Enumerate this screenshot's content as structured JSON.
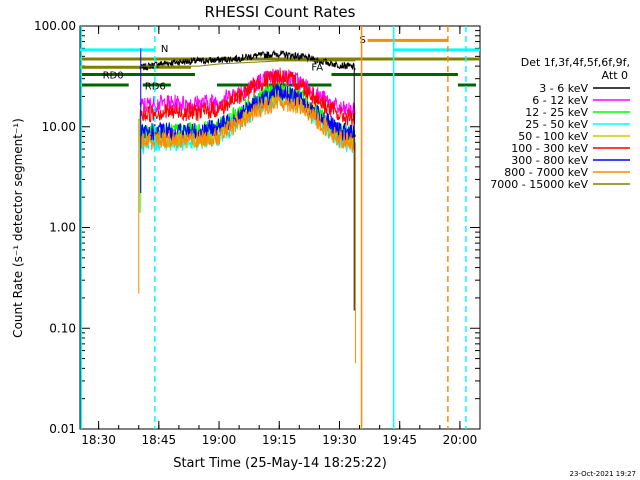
{
  "chart_data": {
    "type": "line",
    "title": "RHESSI Count Rates",
    "xlabel": "Start Time (25-May-14 18:25:22)",
    "ylabel": "Count Rate (s⁻¹ detector segment⁻¹)",
    "yscale": "log",
    "ylim": [
      0.01,
      100
    ],
    "xlim": [
      "18:25:22",
      "20:05:00"
    ],
    "x_ticks": [
      "18:30",
      "18:45",
      "19:00",
      "19:15",
      "19:30",
      "19:45",
      "20:00"
    ],
    "y_ticks": [
      "0.01",
      "0.10",
      "1.00",
      "10.00",
      "100.00"
    ],
    "grid": false,
    "legend_placement": "right",
    "legend_header": [
      "Det 1f,3f,4f,5f,6f,9f,",
      "Att 0"
    ],
    "footer_date": "23-Oct-2021 19:27",
    "series": [
      {
        "name": "3 - 6 keV",
        "color": "#000000",
        "x": [
          "18:40",
          "18:45",
          "18:50",
          "18:55",
          "19:00",
          "19:05",
          "19:10",
          "19:15",
          "19:20",
          "19:25",
          "19:30",
          "19:34"
        ],
        "values": [
          38,
          42,
          44,
          45,
          46,
          48,
          51,
          53,
          50,
          45,
          41,
          39
        ]
      },
      {
        "name": "6 - 12 keV",
        "color": "#ff00ff",
        "x": [
          "18:40",
          "18:45",
          "18:50",
          "18:55",
          "19:00",
          "19:05",
          "19:10",
          "19:15",
          "19:20",
          "19:25",
          "19:30",
          "19:34"
        ],
        "values": [
          16,
          17,
          17,
          17,
          18,
          22,
          28,
          33,
          28,
          20,
          15,
          14
        ]
      },
      {
        "name": "12 - 25 keV",
        "color": "#00ff00",
        "x": [
          "18:40",
          "18:45",
          "18:50",
          "18:55",
          "19:00",
          "19:05",
          "19:10",
          "19:15",
          "19:20",
          "19:25",
          "19:30",
          "19:34"
        ],
        "values": [
          8.5,
          9,
          9,
          9,
          10,
          14,
          20,
          24,
          20,
          13,
          9,
          8
        ]
      },
      {
        "name": "25 - 50 keV",
        "color": "#00ffff",
        "x": [
          "18:40",
          "18:45",
          "18:50",
          "18:55",
          "19:00",
          "19:05",
          "19:10",
          "19:15",
          "19:20",
          "19:25",
          "19:30",
          "19:34"
        ],
        "values": [
          6.5,
          7,
          7,
          7,
          8,
          11,
          16,
          20,
          17,
          11,
          7.5,
          6.5
        ]
      },
      {
        "name": "50 - 100 keV",
        "color": "#c8c800",
        "x": [
          "18:40",
          "18:45",
          "18:50",
          "18:55",
          "19:00",
          "19:05",
          "19:10",
          "19:15",
          "19:20",
          "19:25",
          "19:30",
          "19:34"
        ],
        "values": [
          7,
          7.5,
          7.5,
          7.5,
          8.5,
          12,
          17,
          21,
          18,
          12,
          8,
          7
        ]
      },
      {
        "name": "100 - 300 keV",
        "color": "#ff0000",
        "x": [
          "18:40",
          "18:45",
          "18:50",
          "18:55",
          "19:00",
          "19:05",
          "19:10",
          "19:15",
          "19:20",
          "19:25",
          "19:30",
          "19:34"
        ],
        "values": [
          13,
          14,
          14,
          14,
          15,
          20,
          27,
          32,
          27,
          18,
          13,
          12
        ]
      },
      {
        "name": "300 - 800 keV",
        "color": "#0000ff",
        "x": [
          "18:40",
          "18:45",
          "18:50",
          "18:55",
          "19:00",
          "19:05",
          "19:10",
          "19:15",
          "19:20",
          "19:25",
          "19:30",
          "19:34"
        ],
        "values": [
          8.5,
          9,
          9,
          9,
          10,
          13,
          18,
          22,
          19,
          13,
          9,
          8.5
        ]
      },
      {
        "name": "800 - 7000 keV",
        "color": "#ff8c00",
        "x": [
          "18:40",
          "18:45",
          "18:50",
          "18:55",
          "19:00",
          "19:05",
          "19:10",
          "19:15",
          "19:20",
          "19:25",
          "19:30",
          "19:34"
        ],
        "values": [
          7,
          7.5,
          7.5,
          7.5,
          8,
          11,
          15,
          18,
          16,
          11,
          7.5,
          7
        ]
      },
      {
        "name": "7000 - 15000 keV",
        "color": "#808000",
        "x": [
          "18:40",
          "18:45",
          "18:50",
          "18:55",
          "19:00",
          "19:05",
          "19:10",
          "19:15",
          "19:20",
          "19:25",
          "19:30",
          "19:34"
        ],
        "values": [
          40,
          40,
          40,
          40,
          42,
          43,
          44,
          45,
          45,
          45,
          45,
          45
        ]
      }
    ],
    "annotations": [
      {
        "label": "N",
        "color": "#00ffff"
      },
      {
        "label": "S",
        "color": "#ff8c00"
      },
      {
        "label": "RD0",
        "color": "#006400"
      },
      {
        "label": "RD6",
        "color": "#006400"
      },
      {
        "label": "FA",
        "color": "#808000"
      }
    ]
  }
}
